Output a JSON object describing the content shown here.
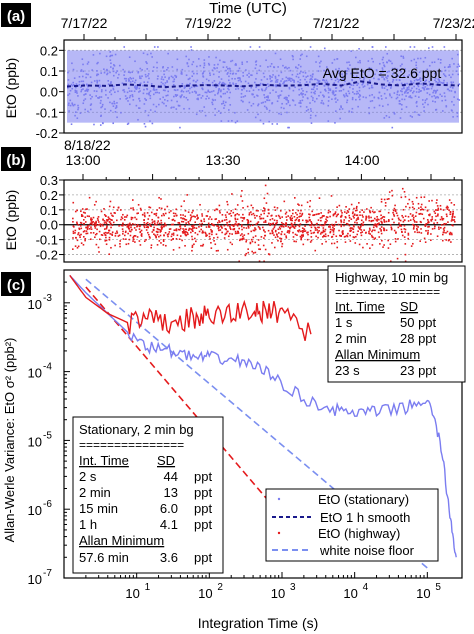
{
  "colors": {
    "stationary": "#7b7df0",
    "highway": "#e41a1c",
    "dark": "#1a1a8c",
    "wn_blue": "#7b8ff0",
    "grid": "#aaaaaa"
  },
  "panels": {
    "a": "(a)",
    "b": "(b)",
    "c": "(c)"
  },
  "chart_data": [
    {
      "type": "scatter",
      "panel": "(a)",
      "title": "Time  (UTC)",
      "top_tick_labels": [
        "7/17/22",
        "7/19/22",
        "7/21/22",
        "7/23/22"
      ],
      "ylabel": "EtO (ppb)",
      "ylim": [
        -0.2,
        0.25
      ],
      "yticks": [
        "0.2",
        "0.1",
        "0.0",
        "-0.1",
        "-0.2"
      ],
      "grid": "dotted horizontal at 0.2, 0.1, -0.1, -0.2",
      "annotation": "Avg EtO = 32.6 ppt",
      "series": [
        {
          "name": "EtO (stationary)",
          "description": "dense cloud of points spanning about -0.17 to 0.22 ppb"
        },
        {
          "name": "EtO 1 h  smooth",
          "x_frac": [
            0,
            0.05,
            0.1,
            0.15,
            0.2,
            0.25,
            0.3,
            0.35,
            0.4,
            0.45,
            0.5,
            0.55,
            0.6,
            0.65,
            0.7,
            0.75,
            0.8,
            0.85,
            0.9,
            0.95,
            1.0
          ],
          "values": [
            0.025,
            0.03,
            0.028,
            0.035,
            0.03,
            0.022,
            0.028,
            0.032,
            0.03,
            0.026,
            0.033,
            0.029,
            0.031,
            0.038,
            0.03,
            0.05,
            0.035,
            0.03,
            0.04,
            0.033,
            0.03
          ]
        }
      ]
    },
    {
      "type": "scatter",
      "panel": "(b)",
      "date_label": "8/18/22",
      "top_tick_labels": [
        "13:00",
        "13:30",
        "14:00"
      ],
      "ylabel": "EtO (ppb)",
      "ylim": [
        -0.25,
        0.3
      ],
      "yticks": [
        "0.3",
        "0.2",
        "0.1",
        "0.0",
        "-0.1",
        "-0.2"
      ],
      "series": [
        {
          "name": "EtO (highway)",
          "description": "points spanning about -0.24 to 0.29 ppb"
        }
      ]
    },
    {
      "type": "line",
      "panel": "(c)",
      "xlabel": "Integration Time (s)",
      "ylabel": "Allan-Werle Variance: EtO σ² (ppb²)",
      "xscale": "log",
      "yscale": "log",
      "xlim": [
        1,
        300000
      ],
      "ylim": [
        1e-07,
        0.003
      ],
      "xticks": [
        "10^1",
        "10^2",
        "10^3",
        "10^4",
        "10^5"
      ],
      "yticks": [
        "10^-3",
        "10^-4",
        "10^-5",
        "10^-6",
        "10^-7"
      ],
      "series": [
        {
          "name": "EtO (stationary)",
          "x": [
            1.2,
            2,
            4,
            8,
            15,
            30,
            60,
            100,
            200,
            400,
            800,
            2000,
            5000,
            10000,
            20000,
            50000,
            100000,
            150000,
            200000,
            250000
          ],
          "values": [
            0.0025,
            0.0014,
            0.0007,
            0.00035,
            0.00023,
            0.0002,
            0.00016,
            0.00016,
            0.00015,
            0.00013,
            8e-05,
            4e-05,
            2.8e-05,
            2.5e-05,
            2.6e-05,
            3e-05,
            4e-05,
            1e-05,
            1e-06,
            2e-07
          ]
        },
        {
          "name": "EtO (highway)",
          "x": [
            1.2,
            2,
            4,
            8,
            15,
            30,
            60,
            100,
            200,
            400,
            600,
            1000,
            2500
          ],
          "values": [
            0.0025,
            0.0012,
            0.0007,
            0.0005,
            0.00055,
            0.0005,
            0.0006,
            0.00062,
            0.0007,
            0.0008,
            0.0007,
            0.0008,
            0.00035
          ]
        },
        {
          "name": "white noise floor",
          "color": "blue",
          "x": [
            2,
            100000
          ],
          "values": [
            0.0022,
            1.4e-07
          ]
        },
        {
          "name": "white noise floor",
          "color": "red",
          "x": [
            2,
            3000
          ],
          "values": [
            0.0017,
            2e-07
          ]
        }
      ],
      "legend": [
        "EtO (stationary)",
        "EtO 1 h  smooth",
        "EtO (highway)",
        "white noise floor"
      ],
      "table_highway": {
        "title": "Highway, 10 min bg",
        "separator": "===============",
        "headers": [
          "Int. Time",
          "SD"
        ],
        "rows": [
          [
            "1 s",
            "50 ppt"
          ],
          [
            "2 min",
            "28 ppt"
          ]
        ],
        "minimum_header": "Allan Minimum",
        "minimum_row": [
          "23 s",
          "23 ppt"
        ]
      },
      "table_stationary": {
        "title": "Stationary, 2 min bg",
        "separator": "===============",
        "headers": [
          "Int. Time",
          "SD"
        ],
        "rows": [
          [
            "2 s",
            "44",
            "ppt"
          ],
          [
            "2 min",
            "13",
            "ppt"
          ],
          [
            "15 min",
            "6.0",
            "ppt"
          ],
          [
            "1 h",
            "4.1",
            "ppt"
          ]
        ],
        "minimum_header": "Allan Minimum",
        "minimum_row": [
          "57.6 min",
          "3.6",
          "ppt"
        ]
      }
    }
  ]
}
